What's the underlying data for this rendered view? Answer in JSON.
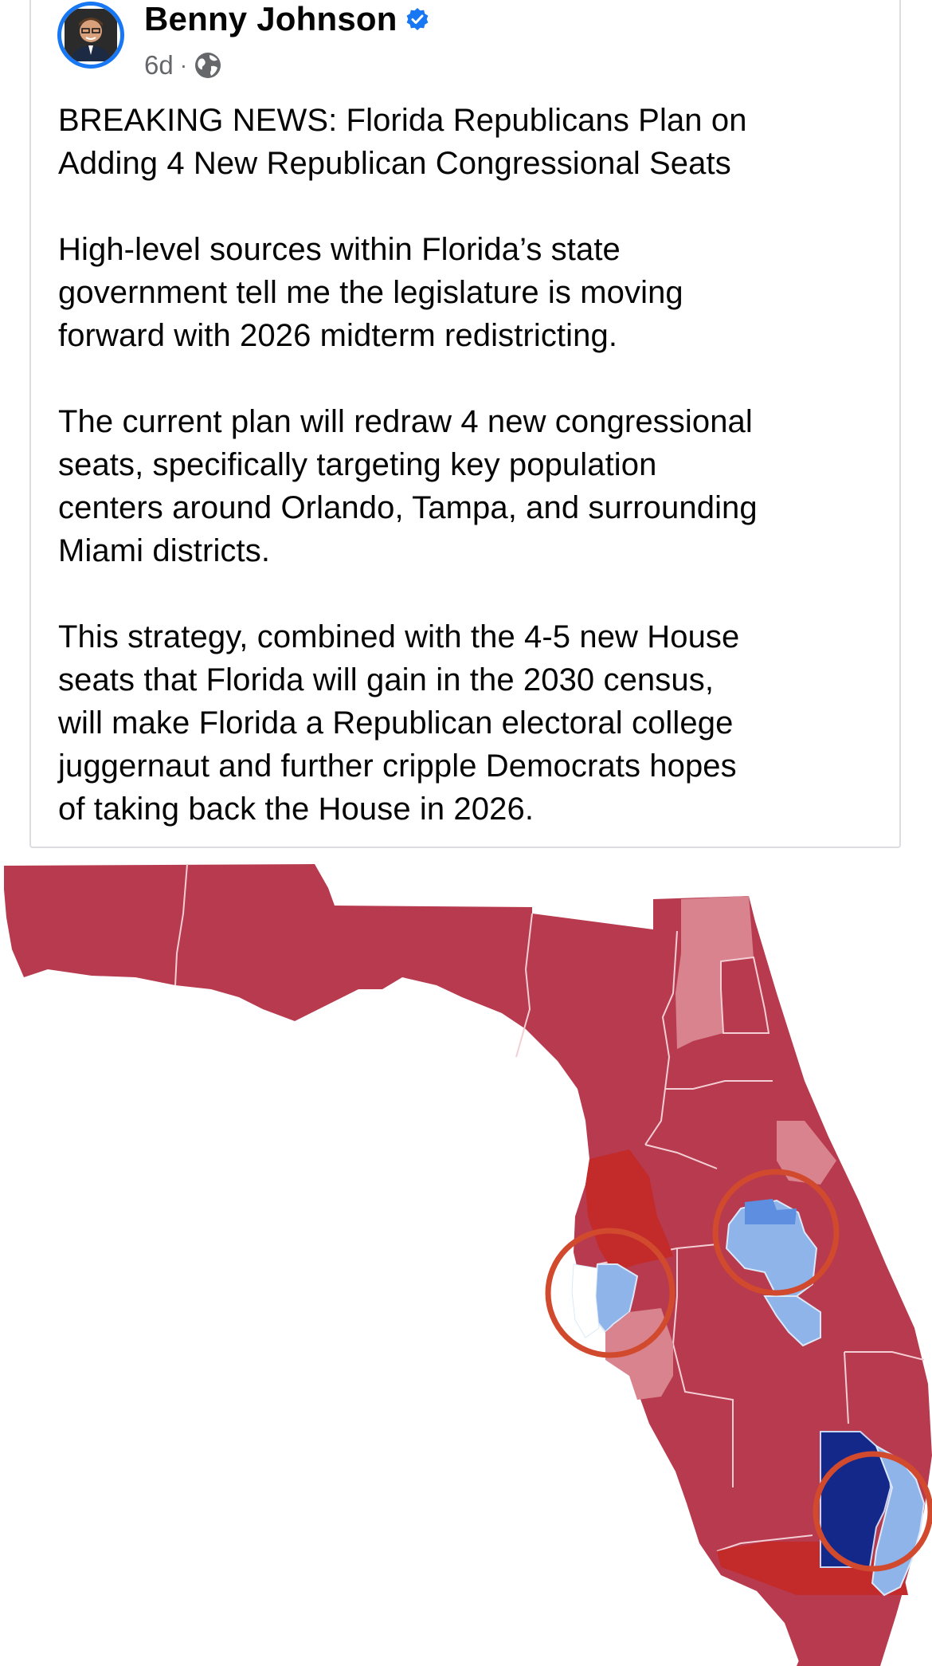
{
  "post": {
    "author": "Benny Johnson",
    "verified": true,
    "time": "6d",
    "separator": "·",
    "privacy_icon": "globe-icon",
    "paragraphs": [
      [
        "BREAKING NEWS: Florida Republicans Plan on",
        "Adding 4 New Republican Congressional Seats"
      ],
      [
        "High-level sources within Florida’s state",
        "government tell me the legislature is moving",
        "forward with 2026 midterm redistricting."
      ],
      [
        "The current plan will redraw 4 new congressional",
        "seats, specifically targeting key population",
        "centers around Orlando, Tampa, and surrounding",
        "Miami districts."
      ],
      [
        "This strategy, combined with the 4-5 new House",
        "seats that Florida will gain in the 2030 census,",
        "will make Florida a Republican electoral college",
        "juggernaut and further cripple Democrats hopes",
        "of taking back the House in 2026."
      ]
    ]
  },
  "colors": {
    "verified_blue": "#1877f2",
    "meta_gray": "#65676b",
    "republican": "#b73a4e",
    "strong_republican": "#c32a2a",
    "lean_republican": "#d9838f",
    "lean_democrat": "#8fb4ea",
    "democrat": "#5d8ee0",
    "strong_democrat": "#14288a",
    "highlight_circle": "#d24a2e"
  },
  "map": {
    "icon": "florida-district-map",
    "highlighted_areas": 3
  }
}
